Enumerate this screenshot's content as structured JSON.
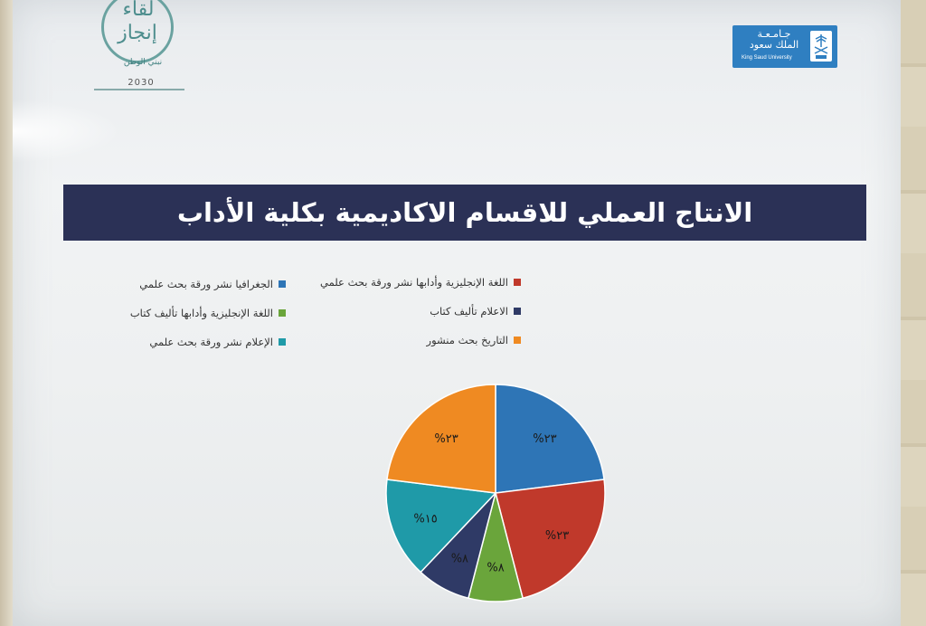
{
  "event_logo": {
    "line1": "لقاء",
    "line2": "إنجاز",
    "subtitle": "نبني الوطن",
    "vision": "2030"
  },
  "university_logo": {
    "name_ar_1": "جـامـعـة",
    "name_ar_2": "الملك سعود",
    "name_en": "King Saud University",
    "brand_color": "#2f7fc1"
  },
  "chart_data": {
    "type": "pie",
    "title": "الانتاج العملي للاقسام الاكاديمية بكلية الأداب",
    "legend_position": "top",
    "slices": [
      {
        "label": "الجغرافيا نشر ورقة بحث علمي",
        "value": 23,
        "display": "%٢٣",
        "color": "#2e75b6"
      },
      {
        "label": "اللغة الإنجليزية وأدابها نشر ورقة بحث علمي",
        "value": 23,
        "display": "%٢٣",
        "color": "#c0392b"
      },
      {
        "label": "اللغة الإنجليزية وأدابها تأليف كتاب",
        "value": 8,
        "display": "%٨",
        "color": "#6aa53b"
      },
      {
        "label": "الاعلام تأليف كتاب",
        "value": 8,
        "display": "%٨",
        "color": "#2f3a66"
      },
      {
        "label": "الإعلام نشر ورقة بحث علمي",
        "value": 15,
        "display": "%١٥",
        "color": "#1f9aa8"
      },
      {
        "label": "التاريخ بحث منشور",
        "value": 23,
        "display": "%٢٣",
        "color": "#ef8a22"
      }
    ]
  }
}
